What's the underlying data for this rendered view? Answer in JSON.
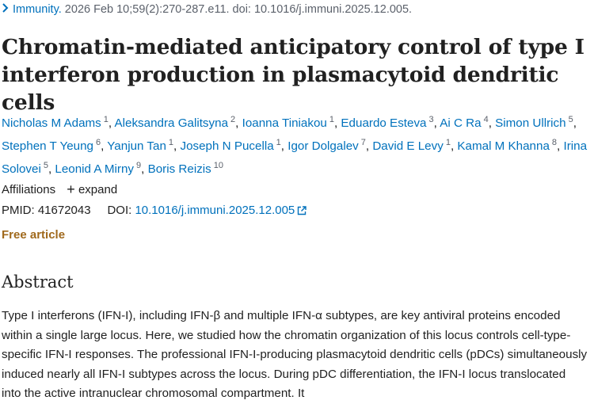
{
  "citation": {
    "journal": "Immunity.",
    "details": " 2026 Feb 10;59(2):270-287.e11. doi: 10.1016/j.immuni.2025.12.005."
  },
  "title": "Chromatin-mediated anticipatory control of type I interferon production in plasmacytoid dendritic cells",
  "authors": [
    {
      "name": "Nicholas M Adams",
      "aff": "1"
    },
    {
      "name": "Aleksandra Galitsyna",
      "aff": "2"
    },
    {
      "name": "Ioanna Tiniakou",
      "aff": "1"
    },
    {
      "name": "Eduardo Esteva",
      "aff": "3"
    },
    {
      "name": "Ai C Ra",
      "aff": "4"
    },
    {
      "name": "Simon Ullrich",
      "aff": "5"
    },
    {
      "name": "Stephen T Yeung",
      "aff": "6"
    },
    {
      "name": "Yanjun Tan",
      "aff": "1"
    },
    {
      "name": "Joseph N Pucella",
      "aff": "1"
    },
    {
      "name": "Igor Dolgalev",
      "aff": "7"
    },
    {
      "name": "David E Levy",
      "aff": "1"
    },
    {
      "name": "Kamal M Khanna",
      "aff": "8"
    },
    {
      "name": "Irina Solovei",
      "aff": "5"
    },
    {
      "name": "Leonid A Mirny",
      "aff": "9"
    },
    {
      "name": "Boris Reizis",
      "aff": "10"
    }
  ],
  "affiliations": {
    "label": "Affiliations",
    "expand": "expand"
  },
  "ids": {
    "pmid_label": "PMID:",
    "pmid": "41672043",
    "doi_label": "DOI:",
    "doi": "10.1016/j.immuni.2025.12.005"
  },
  "free_article": "Free article",
  "abstract": {
    "heading": "Abstract",
    "text": "Type I interferons (IFN-I), including IFN-β and multiple IFN-α subtypes, are key antiviral proteins encoded within a single large locus. Here, we studied how the chromatin organization of this locus controls cell-type-specific IFN-I responses. The professional IFN-I-producing plasmacytoid dendritic cells (pDCs) simultaneously induced nearly all IFN-I subtypes across the locus. During pDC differentiation, the IFN-I locus translocated into the active intranuclear chromosomal compartment. It"
  },
  "colors": {
    "link": "#0071bc",
    "free": "#a0691c",
    "text": "#212121",
    "muted": "#5b616b"
  }
}
